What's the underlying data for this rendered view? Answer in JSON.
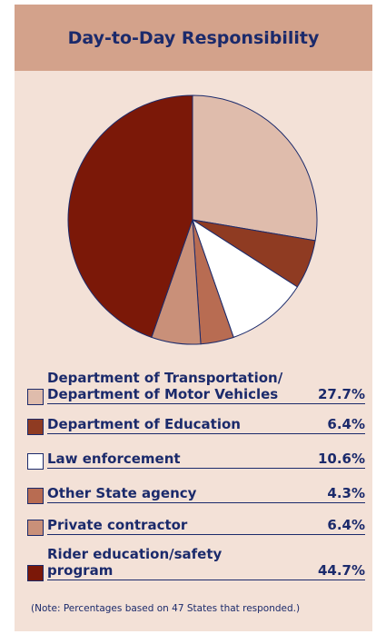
{
  "chart_data": {
    "type": "pie",
    "title": "Day-to-Day Responsibility",
    "categories": [
      "Department of Transportation/\nDepartment of Motor Vehicles",
      "Department of Education",
      "Law enforcement",
      "Other State agency",
      "Private contractor",
      "Rider education/safety\nprogram"
    ],
    "values": [
      27.7,
      6.4,
      10.6,
      4.3,
      6.4,
      44.7
    ],
    "value_labels": [
      "27.7%",
      "6.4%",
      "10.6%",
      "4.3%",
      "6.4%",
      "44.7%"
    ],
    "colors": [
      "#dfbcac",
      "#8f3b22",
      "#ffffff",
      "#b86c52",
      "#c99079",
      "#7b1808"
    ],
    "note": "(Note: Percentages based on 47 States that responded.)"
  }
}
